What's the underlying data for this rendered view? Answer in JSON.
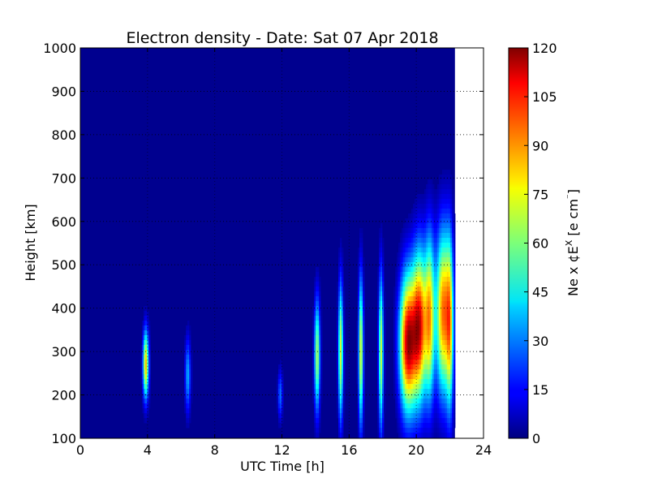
{
  "chart_data": {
    "type": "heatmap",
    "title": "Electron density - Date: Sat 07 Apr 2018",
    "xlabel": "UTC Time [h]",
    "ylabel": "Height [km]",
    "colorbar_label": "Ne x ¢E",
    "colorbar_label_sup": "X",
    "colorbar_label_units": "  [e cm",
    "colorbar_label_units_sup": "⁻",
    "colorbar_label_close": "]",
    "colormap": "jet",
    "xlim": [
      0,
      24
    ],
    "ylim": [
      100,
      1000
    ],
    "zlim": [
      0,
      120
    ],
    "data_end_hour": 22.3,
    "background_value_color": "#00008f",
    "grid": "dotted, visible only in empty region",
    "xticks": [
      0,
      4,
      8,
      12,
      16,
      20,
      24
    ],
    "xtick_labels": [
      "0",
      "4",
      "8",
      "12",
      "16",
      "20",
      "24"
    ],
    "yticks": [
      100,
      200,
      300,
      400,
      500,
      600,
      700,
      800,
      900,
      1000
    ],
    "ytick_labels": [
      "100",
      "200",
      "300",
      "400",
      "500",
      "600",
      "700",
      "800",
      "900",
      "1000"
    ],
    "cticks": [
      0,
      15,
      30,
      45,
      60,
      75,
      90,
      105,
      120
    ],
    "ctick_labels": [
      "0",
      "15",
      "30",
      "45",
      "60",
      "75",
      "90",
      "105",
      "120"
    ],
    "events": [
      {
        "hour": 3.9,
        "peak_height": 270,
        "peak": 82,
        "width_h": 0.12,
        "sigma_km": 55
      },
      {
        "hour": 6.4,
        "peak_height": 245,
        "peak": 35,
        "width_h": 0.12,
        "sigma_km": 60
      },
      {
        "hour": 11.9,
        "peak_height": 200,
        "peak": 28,
        "width_h": 0.1,
        "sigma_km": 40
      },
      {
        "hour": 14.1,
        "peak_height": 290,
        "peak": 65,
        "width_h": 0.12,
        "sigma_km": 90
      },
      {
        "hour": 15.5,
        "peak_height": 300,
        "peak": 70,
        "width_h": 0.1,
        "sigma_km": 110
      },
      {
        "hour": 16.7,
        "peak_height": 300,
        "peak": 72,
        "width_h": 0.1,
        "sigma_km": 120
      },
      {
        "hour": 17.9,
        "peak_height": 300,
        "peak": 68,
        "width_h": 0.1,
        "sigma_km": 125
      },
      {
        "hour": 19.5,
        "peak_height": 320,
        "peak": 112,
        "width_h": 0.35,
        "sigma_km": 110
      },
      {
        "hour": 20.2,
        "peak_height": 360,
        "peak": 100,
        "width_h": 0.3,
        "sigma_km": 120
      },
      {
        "hour": 20.8,
        "peak_height": 380,
        "peak": 75,
        "width_h": 0.2,
        "sigma_km": 130
      },
      {
        "hour": 21.6,
        "peak_height": 390,
        "peak": 92,
        "width_h": 0.3,
        "sigma_km": 130
      },
      {
        "hour": 22.0,
        "peak_height": 360,
        "peak": 60,
        "width_h": 0.15,
        "sigma_km": 140
      }
    ]
  }
}
